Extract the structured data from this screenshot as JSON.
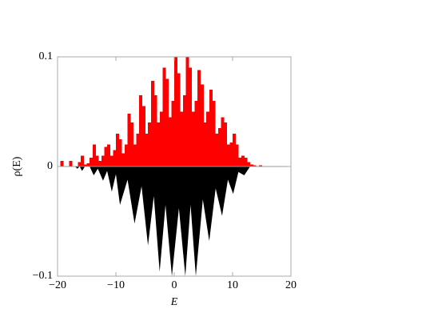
{
  "chart_data": {
    "xlabel": "E",
    "ylabel": "ρ(E)",
    "xlim": [
      -20,
      20
    ],
    "ylim": [
      -0.1,
      0.1
    ],
    "xticks": [
      {
        "value": -20,
        "label": "−20"
      },
      {
        "value": -10,
        "label": "−10"
      },
      0,
      10,
      20
    ],
    "yticks": [
      {
        "value": -0.1,
        "label": "−0.1"
      },
      0,
      0.1
    ],
    "layers": [
      {
        "type": "histogram",
        "color": "#ff0000",
        "bins": [
          -20,
          -19.5,
          -19,
          -18.5,
          -18,
          -17.5,
          -17,
          -16.5,
          -16,
          -15.5,
          -15,
          -14.5,
          -14,
          -13.5,
          -13,
          -12.5,
          -12,
          -11.5,
          -11,
          -10.5,
          -10,
          -9.5,
          -9,
          -8.5,
          -8,
          -7.5,
          -7,
          -6.5,
          -6,
          -5.5,
          -5,
          -4.5,
          -4,
          -3.5,
          -3,
          -2.5,
          -2,
          -1.5,
          -1,
          -0.5,
          0,
          0.5,
          1,
          1.5,
          2,
          2.5,
          3,
          3.5,
          4,
          4.5,
          5,
          5.5,
          6,
          6.5,
          7,
          7.5,
          8,
          8.5,
          9,
          9.5,
          10,
          10.5,
          11,
          11.5,
          12,
          12.5,
          13,
          13.5,
          14,
          14.5,
          15,
          15.5,
          16
        ],
        "counts": [
          0,
          0.005,
          0,
          0,
          0.005,
          0,
          0,
          0.004,
          0.01,
          0.002,
          0.003,
          0.008,
          0.02,
          0.01,
          0.005,
          0.01,
          0.018,
          0.02,
          0.01,
          0.015,
          0.03,
          0.025,
          0.012,
          0.02,
          0.048,
          0.04,
          0.02,
          0.03,
          0.065,
          0.055,
          0.03,
          0.04,
          0.078,
          0.065,
          0.04,
          0.05,
          0.09,
          0.08,
          0.045,
          0.06,
          0.1,
          0.085,
          0.05,
          0.065,
          0.1,
          0.09,
          0.05,
          0.06,
          0.088,
          0.075,
          0.04,
          0.05,
          0.07,
          0.06,
          0.03,
          0.035,
          0.045,
          0.04,
          0.02,
          0.022,
          0.03,
          0.02,
          0.008,
          0.01,
          0.008,
          0.004,
          0.002,
          0.001,
          0,
          0.001,
          0,
          0
        ]
      },
      {
        "type": "area",
        "color": "#000000",
        "x": [
          -20,
          -17,
          -16.6,
          -16.2,
          -15.8,
          -15.3,
          -14.5,
          -13.8,
          -13.1,
          -12.2,
          -11.5,
          -10.7,
          -10.0,
          -9.3,
          -8.0,
          -6.8,
          -5.6,
          -4.5,
          -3.5,
          -2.5,
          -1.5,
          -0.4,
          0.8,
          1.9,
          2.8,
          3.7,
          4.9,
          6.0,
          7.1,
          8.2,
          9.2,
          10.1,
          11.0,
          12.0,
          13.0,
          20
        ],
        "values": [
          0,
          0,
          -0.002,
          0,
          -0.004,
          0,
          0,
          -0.008,
          -0.002,
          -0.013,
          -0.004,
          -0.023,
          -0.007,
          -0.035,
          -0.012,
          -0.052,
          -0.018,
          -0.072,
          -0.027,
          -0.096,
          -0.035,
          -0.1,
          -0.038,
          -0.1,
          -0.035,
          -0.1,
          -0.03,
          -0.068,
          -0.02,
          -0.045,
          -0.012,
          -0.025,
          -0.005,
          -0.008,
          0,
          0
        ]
      }
    ]
  }
}
